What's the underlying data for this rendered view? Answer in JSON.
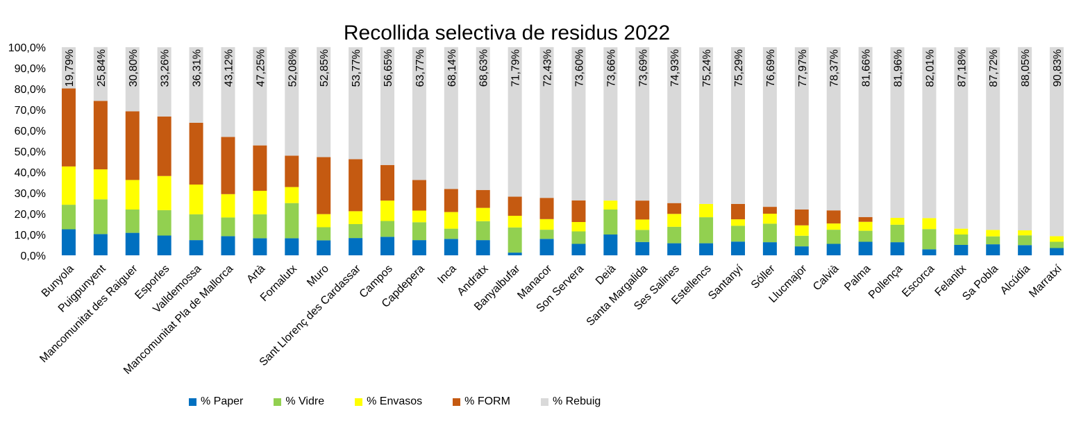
{
  "chart_data": {
    "type": "bar",
    "stacked": true,
    "title": "Recollida selectiva de residus 2022",
    "xlabel": "",
    "ylabel": "",
    "ylim": [
      0,
      100
    ],
    "y_ticks": [
      "0,0%",
      "10,0%",
      "20,0%",
      "30,0%",
      "40,0%",
      "50,0%",
      "60,0%",
      "70,0%",
      "80,0%",
      "90,0%",
      "100,0%"
    ],
    "grid": false,
    "legend_position": "bottom",
    "categories": [
      "Bunyola",
      "Puigpunyent",
      "Mancomunitat des Raiguer",
      "Esporles",
      "Valldemossa",
      "Mancomunitat Pla de Mallorca",
      "Artà",
      "Fornalutx",
      "Muro",
      "Sant Llorenç des Cardassar",
      "Campos",
      "Capdepera",
      "Inca",
      "Andratx",
      "Banyalbufar",
      "Manacor",
      "Son Servera",
      "Deià",
      "Santa Margalida",
      "Ses Salines",
      "Estellencs",
      "Santanyí",
      "Sóller",
      "Llucmajor",
      "Calvià",
      "Palma",
      "Pollença",
      "Escorca",
      "Felanitx",
      "Sa Pobla",
      "Alcúdia",
      "Marratxí"
    ],
    "series": [
      {
        "name": "% Paper",
        "color": "#0070C0",
        "values": [
          12.5,
          10.2,
          10.8,
          9.5,
          7.3,
          9.2,
          8.2,
          8.2,
          7.2,
          8.3,
          8.9,
          7.3,
          7.9,
          7.3,
          1.3,
          7.9,
          5.5,
          10.0,
          6.4,
          5.8,
          5.8,
          6.6,
          6.3,
          4.3,
          5.5,
          6.5,
          6.3,
          2.9,
          5.0,
          5.3,
          4.9,
          3.5
        ]
      },
      {
        "name": "% Vidre",
        "color": "#92D050",
        "values": [
          11.8,
          16.7,
          11.2,
          12.2,
          12.4,
          9.0,
          11.5,
          16.9,
          6.3,
          6.7,
          7.6,
          8.6,
          4.9,
          9.1,
          12.1,
          4.4,
          6.0,
          12.0,
          5.8,
          7.9,
          12.5,
          7.6,
          8.9,
          5.1,
          6.8,
          5.3,
          8.4,
          9.7,
          5.0,
          3.8,
          4.7,
          3.0
        ]
      },
      {
        "name": "% Envasos",
        "color": "#FFFF00",
        "values": [
          18.4,
          14.4,
          14.2,
          16.4,
          14.3,
          11.2,
          11.3,
          7.7,
          6.3,
          6.2,
          9.8,
          5.6,
          8.0,
          6.4,
          5.6,
          5.1,
          4.5,
          4.3,
          5.0,
          6.2,
          6.4,
          3.1,
          4.8,
          5.0,
          3.0,
          4.3,
          3.3,
          5.3,
          2.8,
          3.1,
          2.4,
          2.7
        ]
      },
      {
        "name": "% FORM",
        "color": "#C55A11",
        "values": [
          37.5,
          32.9,
          33.0,
          28.6,
          29.7,
          27.5,
          21.8,
          15.1,
          27.4,
          25.0,
          17.1,
          14.7,
          11.1,
          8.6,
          9.2,
          10.2,
          10.4,
          0.0,
          9.1,
          5.2,
          0.0,
          7.4,
          3.3,
          7.6,
          6.3,
          2.3,
          0.0,
          0.0,
          0.0,
          0.0,
          0.0,
          0.0
        ]
      },
      {
        "name": "% Rebuig",
        "color": "#D9D9D9",
        "values": [
          19.79,
          25.84,
          30.8,
          33.26,
          36.31,
          43.12,
          47.25,
          52.08,
          52.85,
          53.77,
          56.65,
          63.77,
          68.14,
          68.63,
          71.79,
          72.43,
          73.6,
          73.66,
          73.69,
          74.93,
          75.24,
          75.29,
          76.69,
          77.97,
          78.37,
          81.66,
          81.96,
          82.01,
          87.18,
          87.72,
          88.05,
          90.83
        ]
      }
    ],
    "data_labels": [
      "19,79%",
      "25,84%",
      "30,80%",
      "33,26%",
      "36,31%",
      "43,12%",
      "47,25%",
      "52,08%",
      "52,85%",
      "53,77%",
      "56,65%",
      "63,77%",
      "68,14%",
      "68,63%",
      "71,79%",
      "72,43%",
      "73,60%",
      "73,66%",
      "73,69%",
      "74,93%",
      "75,24%",
      "75,29%",
      "76,69%",
      "77,97%",
      "78,37%",
      "81,66%",
      "81,96%",
      "82,01%",
      "87,18%",
      "87,72%",
      "88,05%",
      "90,83%"
    ]
  }
}
